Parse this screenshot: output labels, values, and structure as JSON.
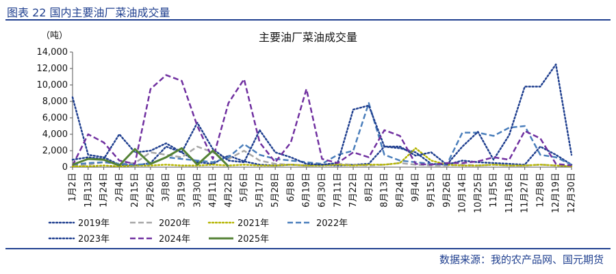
{
  "header": {
    "figure_title": "图表 22 国内主要油厂菜油成交量"
  },
  "footer": {
    "source": "数据来源：我的农产品网、国元期货"
  },
  "chart_data": {
    "type": "line",
    "title": "主要油厂菜油成交量",
    "ylabel": "（吨）",
    "xlabel": "",
    "ylim": [
      0,
      14000
    ],
    "yticks": [
      "0",
      "2,000",
      "4,000",
      "6,000",
      "8,000",
      "10,000",
      "12,000",
      "14,000"
    ],
    "ytick_values": [
      0,
      2000,
      4000,
      6000,
      8000,
      10000,
      12000,
      14000
    ],
    "categories": [
      "1月2日",
      "1月13日",
      "1月24日",
      "2月4日",
      "2月15日",
      "2月26日",
      "3月8日",
      "3月19日",
      "3月30日",
      "4月11日",
      "4月22日",
      "5月6日",
      "5月17日",
      "5月28日",
      "6月8日",
      "6月19日",
      "6月30日",
      "7月11日",
      "7月22日",
      "8月2日",
      "8月13日",
      "8月24日",
      "9月4日",
      "9月15日",
      "9月26日",
      "10月14日",
      "10月25日",
      "11月5日",
      "11月16日",
      "11月27日",
      "12月8日",
      "12月19日",
      "12月30日"
    ],
    "grid": false,
    "legend_position": "bottom",
    "series": [
      {
        "name": "2019年",
        "color": "#1f3f8f",
        "dash": "dot",
        "width": 2.5,
        "values": [
          8500,
          1500,
          1200,
          300,
          200,
          500,
          2500,
          1800,
          600,
          400,
          1400,
          700,
          300,
          200,
          300,
          200,
          300,
          200,
          300,
          400,
          2500,
          2300,
          1800,
          400,
          300,
          800,
          600,
          500,
          400,
          300,
          2500,
          1500,
          300
        ]
      },
      {
        "name": "2020年",
        "color": "#a6a6a6",
        "dash": "dash",
        "width": 2.5,
        "values": [
          200,
          300,
          600,
          400,
          500,
          1800,
          1500,
          1200,
          2500,
          1800,
          1000,
          2000,
          800,
          400,
          300,
          200,
          300,
          400,
          300,
          200,
          300,
          500,
          300,
          200,
          200,
          300,
          200,
          300,
          200,
          200,
          300,
          200,
          100
        ]
      },
      {
        "name": "2021年",
        "color": "#b4b400",
        "dash": "dot",
        "width": 2.5,
        "values": [
          100,
          100,
          200,
          100,
          200,
          200,
          300,
          200,
          200,
          300,
          200,
          300,
          200,
          200,
          300,
          200,
          200,
          300,
          200,
          300,
          300,
          500,
          2300,
          800,
          300,
          200,
          200,
          300,
          200,
          200,
          300,
          200,
          100
        ]
      },
      {
        "name": "2022年",
        "color": "#4a7ebb",
        "dash": "dash",
        "width": 2.5,
        "values": [
          300,
          500,
          600,
          400,
          300,
          400,
          1200,
          1000,
          800,
          600,
          1200,
          2800,
          1500,
          1000,
          800,
          600,
          400,
          1500,
          2000,
          7800,
          1500,
          800,
          600,
          400,
          300,
          4200,
          4200,
          3800,
          4800,
          5000,
          1500,
          1200,
          300
        ]
      },
      {
        "name": "2023年",
        "color": "#1f3f8f",
        "dash": "dot",
        "width": 2.5,
        "values": [
          900,
          1200,
          1000,
          4000,
          1800,
          2000,
          2900,
          1800,
          5400,
          2200,
          800,
          600,
          4500,
          1800,
          1200,
          400,
          300,
          500,
          7000,
          7500,
          2500,
          2500,
          1400,
          1800,
          300,
          2500,
          4300,
          900,
          3900,
          9800,
          9800,
          12500,
          1500
        ]
      },
      {
        "name": "2024年",
        "color": "#7030a0",
        "dash": "dash",
        "width": 2.5,
        "values": [
          200,
          4000,
          3000,
          800,
          400,
          9500,
          11200,
          10500,
          5000,
          1000,
          7800,
          10700,
          3000,
          600,
          3000,
          9500,
          1000,
          500,
          1800,
          1200,
          4500,
          3800,
          400,
          300,
          500,
          500,
          700,
          1200,
          900,
          4400,
          3500,
          400,
          200
        ]
      },
      {
        "name": "2025年",
        "color": "#548235",
        "dash": "solid",
        "width": 3,
        "values": [
          300,
          1000,
          900,
          200,
          2200,
          400,
          1200,
          2300,
          300,
          2000,
          100,
          null,
          null,
          null,
          null,
          null,
          null,
          null,
          null,
          null,
          null,
          null,
          null,
          null,
          null,
          null,
          null,
          null,
          null,
          null,
          null,
          null,
          null
        ]
      }
    ]
  }
}
